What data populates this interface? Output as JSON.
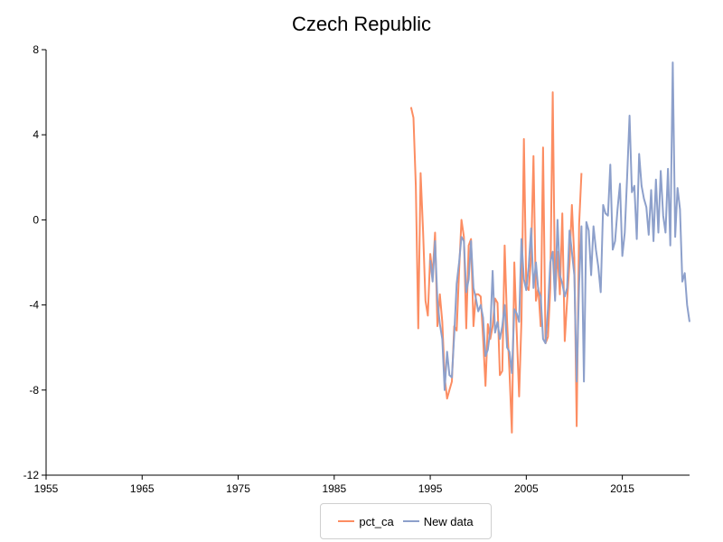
{
  "chart_data": {
    "type": "line",
    "title": "Czech Republic",
    "xlabel": "",
    "ylabel": "",
    "xlim": [
      1955,
      2022
    ],
    "ylim": [
      -12,
      8
    ],
    "x_ticks": [
      1955,
      1965,
      1975,
      1985,
      1995,
      2005,
      2015
    ],
    "y_ticks": [
      -12,
      -8,
      -4,
      0,
      4,
      8
    ],
    "grid": false,
    "legend_position": "bottom-center",
    "series": [
      {
        "name": "pct_ca",
        "color": "#fc8d62",
        "points": [
          [
            1993.0,
            5.3
          ],
          [
            1993.25,
            4.8
          ],
          [
            1993.5,
            1.6
          ],
          [
            1993.75,
            -5.1
          ],
          [
            1994.0,
            2.2
          ],
          [
            1994.25,
            -0.5
          ],
          [
            1994.5,
            -3.8
          ],
          [
            1994.75,
            -4.5
          ],
          [
            1995.0,
            -1.6
          ],
          [
            1995.25,
            -2.6
          ],
          [
            1995.5,
            -0.6
          ],
          [
            1995.75,
            -5.0
          ],
          [
            1996.0,
            -3.5
          ],
          [
            1996.25,
            -4.8
          ],
          [
            1996.5,
            -7.4
          ],
          [
            1996.75,
            -8.4
          ],
          [
            1997.0,
            -8.0
          ],
          [
            1997.25,
            -7.6
          ],
          [
            1997.5,
            -5.0
          ],
          [
            1997.75,
            -5.2
          ],
          [
            1998.0,
            -2.4
          ],
          [
            1998.25,
            0.0
          ],
          [
            1998.5,
            -0.8
          ],
          [
            1998.75,
            -5.1
          ],
          [
            1999.0,
            -1.2
          ],
          [
            1999.25,
            -0.9
          ],
          [
            1999.5,
            -5.0
          ],
          [
            1999.75,
            -3.5
          ],
          [
            2000.0,
            -3.5
          ],
          [
            2000.25,
            -3.6
          ],
          [
            2000.5,
            -5.5
          ],
          [
            2000.75,
            -7.8
          ],
          [
            2001.0,
            -4.9
          ],
          [
            2001.25,
            -5.6
          ],
          [
            2001.5,
            -5.0
          ],
          [
            2001.75,
            -3.7
          ],
          [
            2002.0,
            -3.9
          ],
          [
            2002.25,
            -7.3
          ],
          [
            2002.5,
            -7.1
          ],
          [
            2002.75,
            -1.2
          ],
          [
            2003.0,
            -4.8
          ],
          [
            2003.25,
            -7.1
          ],
          [
            2003.5,
            -10.0
          ],
          [
            2003.75,
            -2.0
          ],
          [
            2004.0,
            -5.2
          ],
          [
            2004.25,
            -8.3
          ],
          [
            2004.5,
            -4.7
          ],
          [
            2004.75,
            3.8
          ],
          [
            2005.0,
            -3.1
          ],
          [
            2005.25,
            -3.3
          ],
          [
            2005.5,
            -1.7
          ],
          [
            2005.75,
            3.0
          ],
          [
            2006.0,
            -3.8
          ],
          [
            2006.25,
            -3.2
          ],
          [
            2006.5,
            -5.0
          ],
          [
            2006.75,
            3.4
          ],
          [
            2007.0,
            -5.8
          ],
          [
            2007.25,
            -5.5
          ],
          [
            2007.5,
            -3.2
          ],
          [
            2007.75,
            6.0
          ],
          [
            2008.0,
            -3.6
          ],
          [
            2008.25,
            -1.5
          ],
          [
            2008.5,
            -3.5
          ],
          [
            2008.75,
            0.3
          ],
          [
            2009.0,
            -5.7
          ],
          [
            2009.25,
            -3.8
          ],
          [
            2009.5,
            -2.0
          ],
          [
            2009.75,
            0.7
          ],
          [
            2010.0,
            -1.8
          ],
          [
            2010.25,
            -9.7
          ],
          [
            2010.5,
            -0.2
          ],
          [
            2010.75,
            2.2
          ]
        ]
      },
      {
        "name": "New data",
        "color": "#8da0cb",
        "points": [
          [
            1995.0,
            -1.9
          ],
          [
            1995.25,
            -2.9
          ],
          [
            1995.5,
            -1.0
          ],
          [
            1995.75,
            -3.8
          ],
          [
            1996.0,
            -4.9
          ],
          [
            1996.25,
            -5.6
          ],
          [
            1996.5,
            -8.0
          ],
          [
            1996.75,
            -6.2
          ],
          [
            1997.0,
            -7.3
          ],
          [
            1997.25,
            -7.4
          ],
          [
            1997.5,
            -5.4
          ],
          [
            1997.75,
            -3.0
          ],
          [
            1998.0,
            -2.0
          ],
          [
            1998.25,
            -0.8
          ],
          [
            1998.5,
            -1.0
          ],
          [
            1998.75,
            -3.4
          ],
          [
            1999.0,
            -2.8
          ],
          [
            1999.25,
            -1.0
          ],
          [
            1999.5,
            -3.2
          ],
          [
            1999.75,
            -3.7
          ],
          [
            2000.0,
            -4.3
          ],
          [
            2000.25,
            -4.0
          ],
          [
            2000.5,
            -4.6
          ],
          [
            2000.75,
            -6.4
          ],
          [
            2001.0,
            -6.1
          ],
          [
            2001.25,
            -5.2
          ],
          [
            2001.5,
            -2.4
          ],
          [
            2001.75,
            -5.3
          ],
          [
            2002.0,
            -4.8
          ],
          [
            2002.25,
            -5.6
          ],
          [
            2002.5,
            -5.0
          ],
          [
            2002.75,
            -4.0
          ],
          [
            2003.0,
            -6.0
          ],
          [
            2003.25,
            -6.2
          ],
          [
            2003.5,
            -7.2
          ],
          [
            2003.75,
            -4.2
          ],
          [
            2004.0,
            -4.4
          ],
          [
            2004.25,
            -4.8
          ],
          [
            2004.5,
            -0.9
          ],
          [
            2004.75,
            -2.8
          ],
          [
            2005.0,
            -3.3
          ],
          [
            2005.25,
            -2.2
          ],
          [
            2005.5,
            -0.4
          ],
          [
            2005.75,
            -3.2
          ],
          [
            2006.0,
            -2.0
          ],
          [
            2006.25,
            -3.3
          ],
          [
            2006.5,
            -3.6
          ],
          [
            2006.75,
            -5.6
          ],
          [
            2007.0,
            -5.8
          ],
          [
            2007.25,
            -4.2
          ],
          [
            2007.5,
            -2.0
          ],
          [
            2007.75,
            -1.5
          ],
          [
            2008.0,
            -3.8
          ],
          [
            2008.25,
            0.0
          ],
          [
            2008.5,
            -2.6
          ],
          [
            2008.75,
            -3.0
          ],
          [
            2009.0,
            -3.6
          ],
          [
            2009.25,
            -3.2
          ],
          [
            2009.5,
            -0.5
          ],
          [
            2009.75,
            -1.5
          ],
          [
            2010.0,
            -2.6
          ],
          [
            2010.25,
            -7.6
          ],
          [
            2010.5,
            -3.0
          ],
          [
            2010.75,
            -0.3
          ],
          [
            2011.0,
            -7.6
          ],
          [
            2011.25,
            -0.1
          ],
          [
            2011.5,
            -0.5
          ],
          [
            2011.75,
            -2.6
          ],
          [
            2012.0,
            -0.3
          ],
          [
            2012.25,
            -1.4
          ],
          [
            2012.5,
            -2.2
          ],
          [
            2012.75,
            -3.4
          ],
          [
            2013.0,
            0.7
          ],
          [
            2013.25,
            0.3
          ],
          [
            2013.5,
            0.2
          ],
          [
            2013.75,
            2.6
          ],
          [
            2014.0,
            -1.4
          ],
          [
            2014.25,
            -1.0
          ],
          [
            2014.5,
            0.5
          ],
          [
            2014.75,
            1.7
          ],
          [
            2015.0,
            -1.7
          ],
          [
            2015.25,
            -0.6
          ],
          [
            2015.5,
            2.0
          ],
          [
            2015.75,
            4.9
          ],
          [
            2016.0,
            1.3
          ],
          [
            2016.25,
            1.6
          ],
          [
            2016.5,
            -0.9
          ],
          [
            2016.75,
            3.1
          ],
          [
            2017.0,
            1.6
          ],
          [
            2017.25,
            1.0
          ],
          [
            2017.5,
            0.6
          ],
          [
            2017.75,
            -0.7
          ],
          [
            2018.0,
            1.4
          ],
          [
            2018.25,
            -1.0
          ],
          [
            2018.5,
            1.9
          ],
          [
            2018.75,
            -0.6
          ],
          [
            2019.0,
            2.3
          ],
          [
            2019.25,
            0.2
          ],
          [
            2019.5,
            -0.6
          ],
          [
            2019.75,
            2.4
          ],
          [
            2020.0,
            -1.2
          ],
          [
            2020.25,
            7.4
          ],
          [
            2020.5,
            -0.8
          ],
          [
            2020.75,
            1.5
          ],
          [
            2021.0,
            0.5
          ],
          [
            2021.25,
            -2.9
          ],
          [
            2021.5,
            -2.5
          ],
          [
            2021.75,
            -4.0
          ],
          [
            2022.0,
            -4.8
          ]
        ]
      }
    ]
  }
}
